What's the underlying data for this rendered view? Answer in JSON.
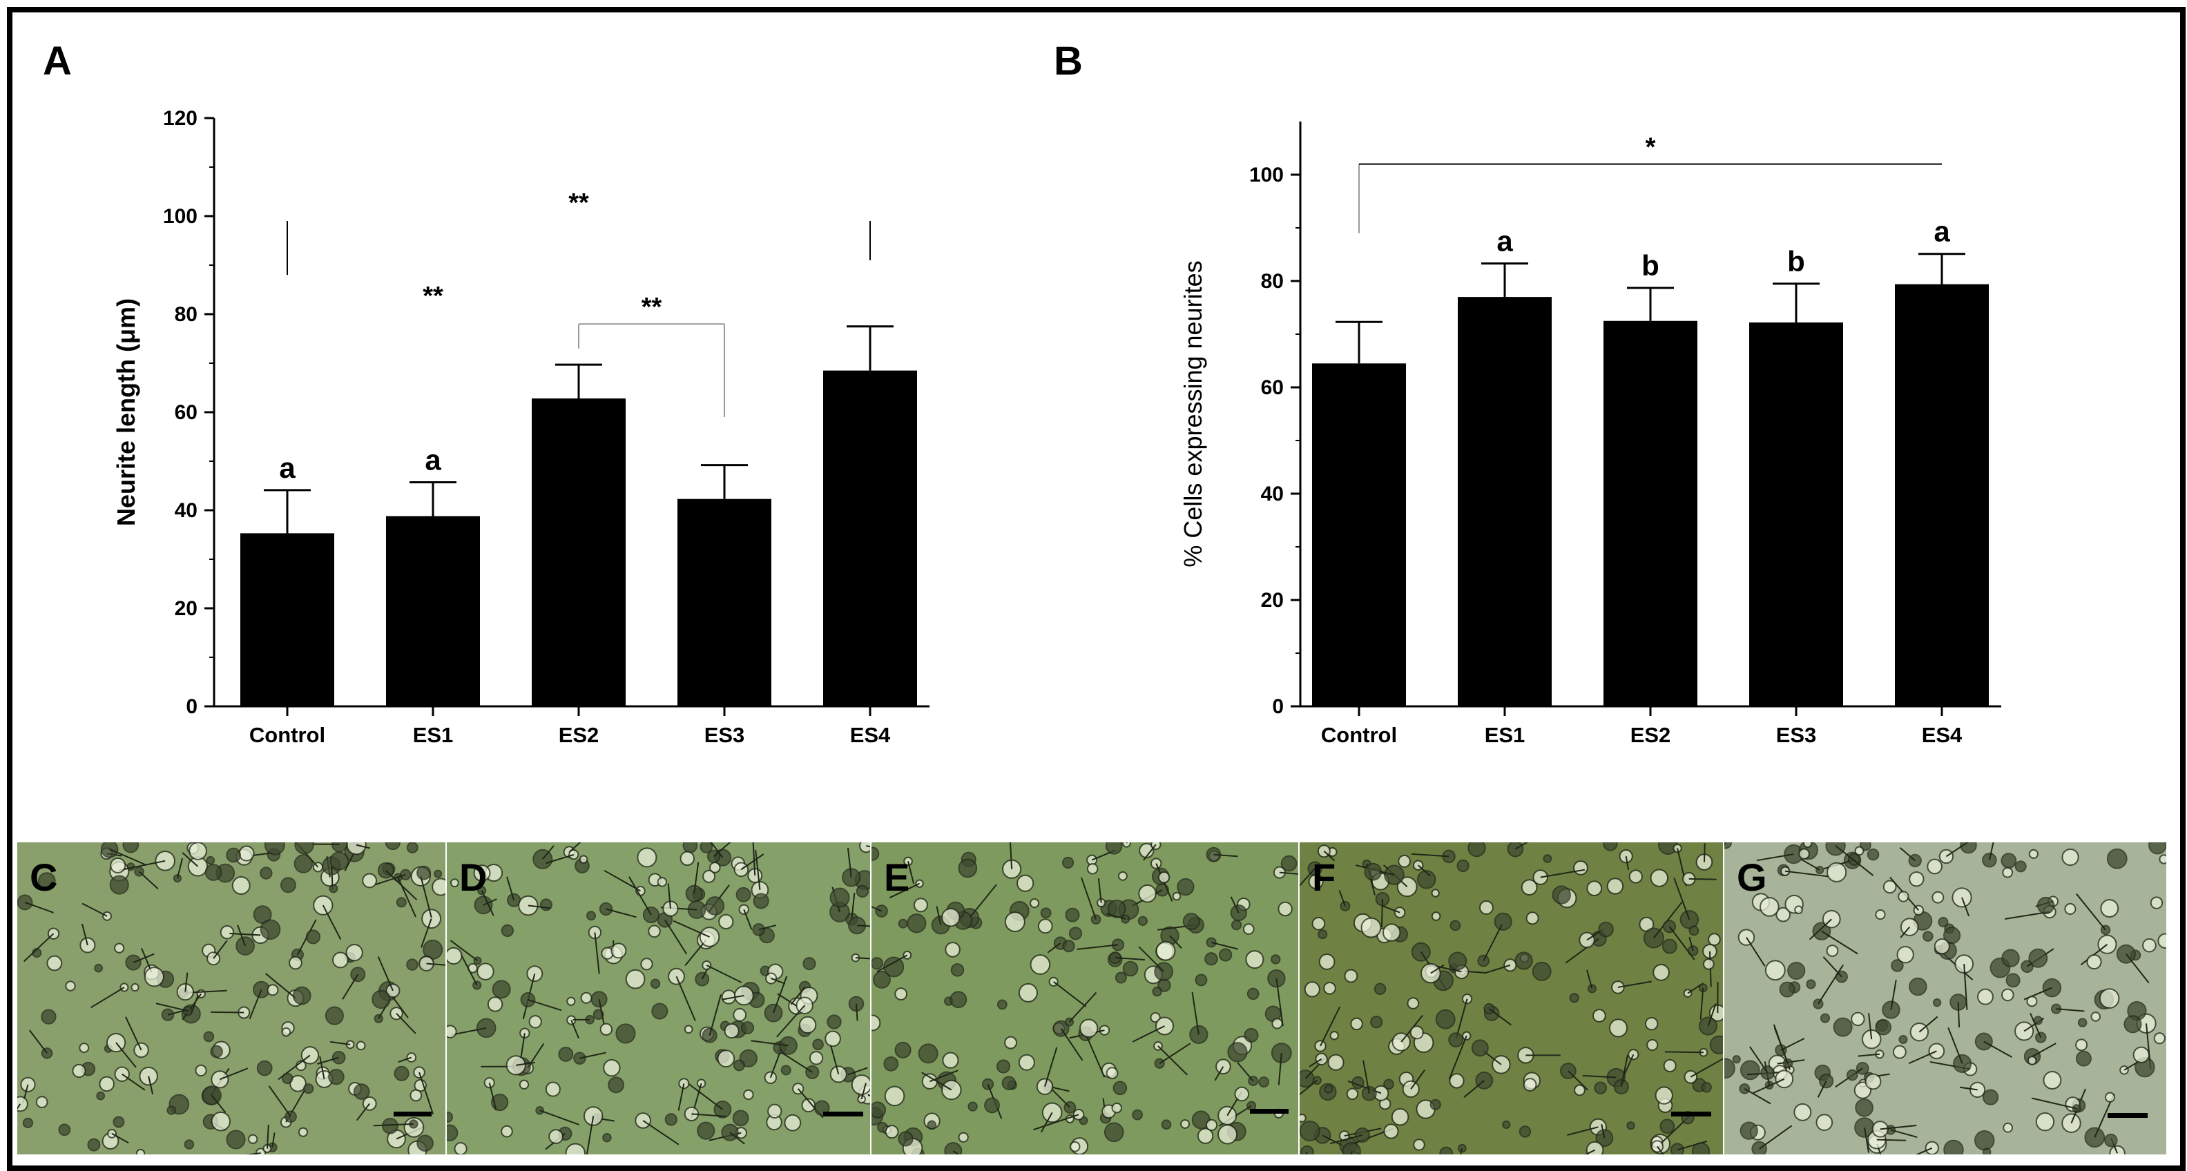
{
  "chart_data": [
    {
      "type": "bar",
      "panel_label": "A",
      "categories": [
        "Control",
        "ES1",
        "ES2",
        "ES3",
        "ES4"
      ],
      "values": [
        35.3,
        38.8,
        62.8,
        42.3,
        68.5
      ],
      "errors": [
        8.8,
        6.9,
        6.9,
        6.9,
        9.0
      ],
      "group_letters": [
        "a",
        "a",
        "",
        "",
        ""
      ],
      "xlabel": "",
      "ylabel": "Neurite length (μm)",
      "ylim": [
        0,
        120
      ],
      "yticks": [
        0,
        20,
        40,
        60,
        80,
        100,
        120
      ],
      "annotations": [
        {
          "text": "**",
          "category": "ES1",
          "y": 82
        },
        {
          "text": "**",
          "category": "ES2",
          "y": 101
        },
        {
          "text": "**",
          "from": "ES2",
          "to": "ES3",
          "y": 78
        }
      ],
      "brackets": [
        {
          "category": "Control",
          "y_from": 88,
          "y_to": 99
        },
        {
          "category": "ES4",
          "y_from": 91,
          "y_to": 99
        },
        {
          "category": "ES2",
          "y_from": 73,
          "y_to": 78
        },
        {
          "category": "ES3",
          "y_from": 59,
          "y_to": 78
        }
      ],
      "grid": false,
      "color": "#000000"
    },
    {
      "type": "bar",
      "panel_label": "B",
      "categories": [
        "Control",
        "ES1",
        "ES2",
        "ES3",
        "ES4"
      ],
      "values": [
        64.5,
        77.0,
        72.5,
        72.2,
        79.4
      ],
      "errors": [
        7.8,
        6.3,
        6.2,
        7.3,
        5.7
      ],
      "group_letters": [
        "",
        "a",
        "b",
        "b",
        "a"
      ],
      "xlabel": "",
      "ylabel": "% Cells expressing neurites",
      "ylim": [
        0,
        110
      ],
      "yticks": [
        0,
        20,
        40,
        60,
        80,
        100
      ],
      "annotations": [
        {
          "text": "*",
          "from": "Control",
          "to": "ES4",
          "y": 102
        }
      ],
      "brackets": [
        {
          "category": "Control",
          "y_from": 89,
          "y_to": 102
        }
      ],
      "grid": false,
      "color": "#000000"
    }
  ],
  "micrographs": [
    {
      "label": "C",
      "tint": "#8aa06c"
    },
    {
      "label": "D",
      "tint": "#86a06a"
    },
    {
      "label": "E",
      "tint": "#7f9a5e"
    },
    {
      "label": "F",
      "tint": "#6f8244"
    },
    {
      "label": "G",
      "tint": "#a8b49a"
    }
  ]
}
